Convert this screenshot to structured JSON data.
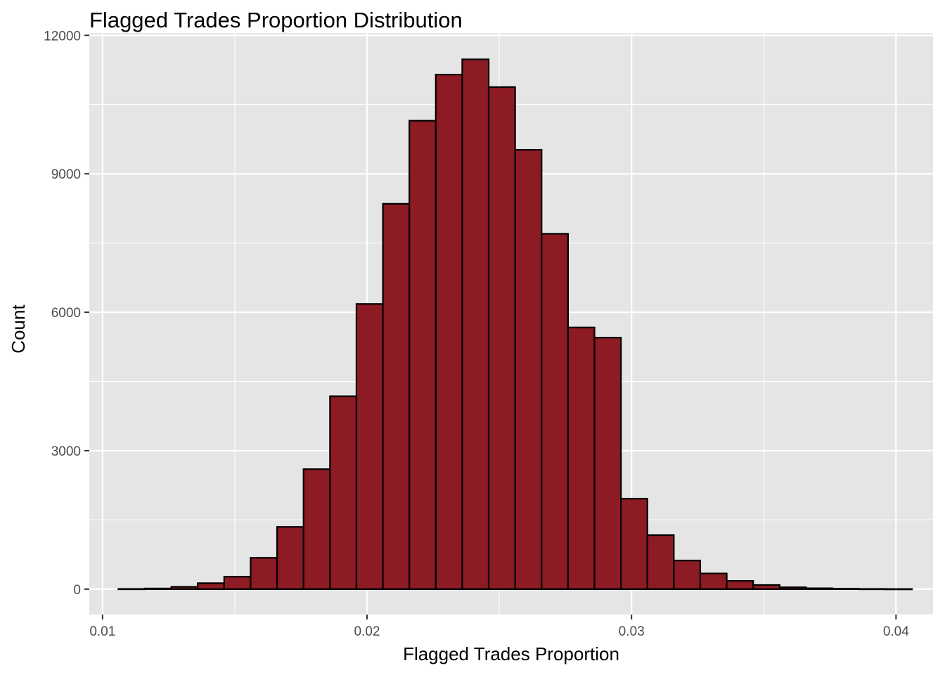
{
  "chart_data": {
    "type": "bar",
    "title": "Flagged Trades Proportion Distribution",
    "xlabel": "Flagged Trades Proportion",
    "ylabel": "Count",
    "xlim": [
      0.0095,
      0.0414
    ],
    "ylim": [
      -550,
      12050
    ],
    "x_ticks": [
      0.01,
      0.02,
      0.03,
      0.04
    ],
    "x_tick_labels": [
      "0.01",
      "0.02",
      "0.03",
      "0.04"
    ],
    "y_ticks": [
      0,
      3000,
      6000,
      9000,
      12000
    ],
    "y_tick_labels": [
      "0",
      "3000",
      "6000",
      "9000",
      "12000"
    ],
    "grid": true,
    "bin_width": 0.001,
    "bin_centers": [
      0.0111,
      0.0121,
      0.0131,
      0.0141,
      0.0151,
      0.0161,
      0.0171,
      0.0181,
      0.0191,
      0.0201,
      0.0211,
      0.0221,
      0.0231,
      0.0241,
      0.0251,
      0.0261,
      0.0271,
      0.0281,
      0.0291,
      0.0301,
      0.0311,
      0.0321,
      0.0331,
      0.0341,
      0.0351,
      0.0361,
      0.0371,
      0.0381,
      0.0391,
      0.0401
    ],
    "values": [
      5,
      15,
      50,
      130,
      270,
      680,
      1350,
      2600,
      4180,
      6180,
      8350,
      10150,
      11150,
      11480,
      10880,
      9520,
      7700,
      5670,
      5450,
      1960,
      1170,
      620,
      340,
      180,
      90,
      40,
      20,
      10,
      5,
      3
    ],
    "bar_fill": "#8c1b23",
    "bar_outline": "#000000",
    "panel_background": "#e5e5e5",
    "grid_color": "#ffffff"
  }
}
